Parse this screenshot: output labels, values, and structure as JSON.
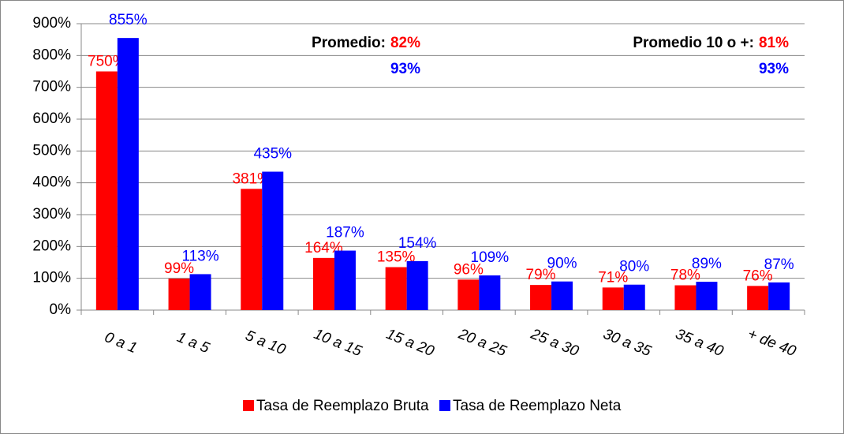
{
  "chart_data": {
    "type": "bar",
    "categories": [
      "0 a 1",
      "1 a 5",
      "5 a 10",
      "10 a 15",
      "15 a 20",
      "20 a 25",
      "25 a 30",
      "30 a 35",
      "35 a 40",
      "+ de 40"
    ],
    "series": [
      {
        "name": "Tasa de Reemplazo Bruta",
        "color": "#ff0000",
        "values": [
          750,
          99,
          381,
          164,
          135,
          96,
          79,
          71,
          78,
          76
        ],
        "value_labels": [
          "750%",
          "99%",
          "381%",
          "164%",
          "135%",
          "96%",
          "79%",
          "71%",
          "78%",
          "76%"
        ]
      },
      {
        "name": "Tasa de Reemplazo Neta",
        "color": "#0000ff",
        "values": [
          855,
          113,
          435,
          187,
          154,
          109,
          90,
          80,
          89,
          87
        ],
        "value_labels": [
          "855%",
          "113%",
          "435%",
          "187%",
          "154%",
          "109%",
          "90%",
          "80%",
          "89%",
          "87%"
        ]
      }
    ],
    "ylim": [
      0,
      900
    ],
    "yticks": [
      {
        "value": 0,
        "label": "0%"
      },
      {
        "value": 100,
        "label": "100%"
      },
      {
        "value": 200,
        "label": "200%"
      },
      {
        "value": 300,
        "label": "300%"
      },
      {
        "value": 400,
        "label": "400%"
      },
      {
        "value": 500,
        "label": "500%"
      },
      {
        "value": 600,
        "label": "600%"
      },
      {
        "value": 700,
        "label": "700%"
      },
      {
        "value": 800,
        "label": "800%"
      },
      {
        "value": 900,
        "label": "900%"
      }
    ],
    "grid": true,
    "legend": "bottom",
    "annotations": [
      {
        "text": "Promedio:",
        "bruta": "82%",
        "neta": "93%"
      },
      {
        "text": "Promedio 10 o +:",
        "bruta": "81%",
        "neta": "93%"
      }
    ]
  }
}
